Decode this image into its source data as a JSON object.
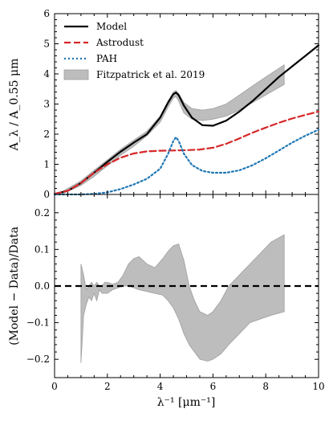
{
  "chart_data": [
    {
      "type": "line",
      "panel": "top",
      "xlabel": "λ⁻¹ [μm⁻¹]",
      "ylabel": "A_λ / A_0.55 μm",
      "xlim": [
        0,
        10
      ],
      "ylim": [
        0,
        6
      ],
      "xticks": [
        "0",
        "2",
        "4",
        "6",
        "8",
        "10"
      ],
      "yticks": [
        "0",
        "1",
        "2",
        "3",
        "4",
        "5",
        "6"
      ],
      "legend_position": "top-left",
      "legend": [
        "Model",
        "Astrodust",
        "PAH",
        "Fitzpatrick et al. 2019"
      ],
      "band": {
        "name": "Fitzpatrick et al. 2019",
        "color": "#bdbdbd",
        "x": [
          0.2,
          0.5,
          1.0,
          1.5,
          2.0,
          2.5,
          3.0,
          3.5,
          4.0,
          4.3,
          4.5,
          4.6,
          4.7,
          4.9,
          5.2,
          5.6,
          6.0,
          6.5,
          7.0,
          7.5,
          8.0,
          8.7
        ],
        "upper": [
          0.05,
          0.2,
          0.45,
          0.8,
          1.15,
          1.5,
          1.8,
          2.1,
          2.6,
          3.1,
          3.4,
          3.45,
          3.35,
          3.05,
          2.85,
          2.8,
          2.85,
          3.0,
          3.3,
          3.6,
          3.9,
          4.3
        ],
        "lower": [
          0.0,
          0.1,
          0.3,
          0.6,
          0.95,
          1.3,
          1.6,
          1.95,
          2.4,
          2.9,
          3.2,
          3.25,
          3.1,
          2.7,
          2.5,
          2.45,
          2.5,
          2.6,
          2.8,
          3.05,
          3.3,
          3.65
        ]
      },
      "series": [
        {
          "name": "Model",
          "color": "#000000",
          "style": "solid",
          "x": [
            0,
            0.5,
            1.0,
            1.5,
            2.0,
            2.5,
            3.0,
            3.5,
            4.0,
            4.3,
            4.5,
            4.6,
            4.7,
            4.9,
            5.2,
            5.6,
            6.0,
            6.5,
            7.0,
            7.5,
            8.0,
            8.5,
            9.0,
            9.5,
            10.0
          ],
          "y": [
            0.02,
            0.12,
            0.38,
            0.72,
            1.08,
            1.42,
            1.72,
            2.0,
            2.55,
            3.05,
            3.33,
            3.38,
            3.3,
            2.95,
            2.55,
            2.3,
            2.28,
            2.45,
            2.75,
            3.1,
            3.5,
            3.9,
            4.25,
            4.6,
            4.95
          ]
        },
        {
          "name": "Astrodust",
          "color": "#d62728",
          "style": "dashed",
          "x": [
            0,
            0.5,
            1.0,
            1.5,
            2.0,
            2.5,
            3.0,
            3.5,
            4.0,
            4.5,
            5.0,
            5.5,
            6.0,
            6.5,
            7.0,
            7.5,
            8.0,
            8.5,
            9.0,
            9.5,
            10.0
          ],
          "y": [
            0.02,
            0.12,
            0.38,
            0.72,
            1.0,
            1.22,
            1.36,
            1.43,
            1.45,
            1.46,
            1.47,
            1.49,
            1.55,
            1.68,
            1.86,
            2.05,
            2.22,
            2.38,
            2.52,
            2.64,
            2.75
          ]
        },
        {
          "name": "PAH",
          "color": "#1f77b4",
          "style": "dotted",
          "x": [
            0,
            1.0,
            1.5,
            2.0,
            2.5,
            3.0,
            3.5,
            4.0,
            4.3,
            4.5,
            4.6,
            4.7,
            4.9,
            5.2,
            5.6,
            6.0,
            6.5,
            7.0,
            7.5,
            8.0,
            8.5,
            9.0,
            9.5,
            10.0
          ],
          "y": [
            0.0,
            0.0,
            0.02,
            0.07,
            0.18,
            0.33,
            0.52,
            0.85,
            1.35,
            1.78,
            1.9,
            1.78,
            1.35,
            0.98,
            0.78,
            0.72,
            0.72,
            0.8,
            0.97,
            1.2,
            1.46,
            1.72,
            1.95,
            2.15
          ]
        }
      ]
    },
    {
      "type": "area",
      "panel": "bottom",
      "xlabel": "λ⁻¹ [μm⁻¹]",
      "ylabel": "(Model − Data)/Data",
      "xlim": [
        0,
        10
      ],
      "ylim": [
        -0.25,
        0.25
      ],
      "xticks": [
        "0",
        "2",
        "4",
        "6",
        "8",
        "10"
      ],
      "yticks": [
        "−0.2",
        "−0.1",
        "0.0",
        "0.1",
        "0.2"
      ],
      "zero_line": {
        "y": 0.0,
        "color": "#000000",
        "style": "dashed"
      },
      "band": {
        "color": "#bdbdbd",
        "x": [
          1.0,
          1.1,
          1.2,
          1.3,
          1.4,
          1.5,
          1.6,
          1.7,
          1.8,
          1.9,
          2.0,
          2.2,
          2.4,
          2.6,
          2.8,
          3.0,
          3.2,
          3.5,
          3.8,
          4.1,
          4.3,
          4.5,
          4.7,
          4.9,
          5.1,
          5.3,
          5.5,
          5.8,
          6.0,
          6.3,
          6.6,
          7.0,
          7.4,
          7.8,
          8.2,
          8.7
        ],
        "upper": [
          0.06,
          0.03,
          -0.01,
          0.0,
          0.01,
          0.0,
          0.01,
          0.0,
          0.0,
          0.01,
          0.01,
          0.005,
          0.01,
          0.03,
          0.06,
          0.075,
          0.08,
          0.06,
          0.05,
          0.075,
          0.095,
          0.11,
          0.115,
          0.07,
          0.0,
          -0.04,
          -0.07,
          -0.08,
          -0.07,
          -0.04,
          0.0,
          0.03,
          0.06,
          0.09,
          0.12,
          0.14
        ],
        "lower": [
          -0.21,
          -0.08,
          -0.05,
          -0.03,
          -0.04,
          -0.02,
          -0.04,
          -0.01,
          -0.02,
          -0.02,
          -0.02,
          -0.01,
          -0.005,
          0.0,
          0.0,
          -0.005,
          -0.01,
          -0.015,
          -0.02,
          -0.025,
          -0.04,
          -0.06,
          -0.09,
          -0.13,
          -0.16,
          -0.18,
          -0.2,
          -0.205,
          -0.2,
          -0.185,
          -0.16,
          -0.13,
          -0.1,
          -0.09,
          -0.08,
          -0.07
        ]
      }
    }
  ]
}
